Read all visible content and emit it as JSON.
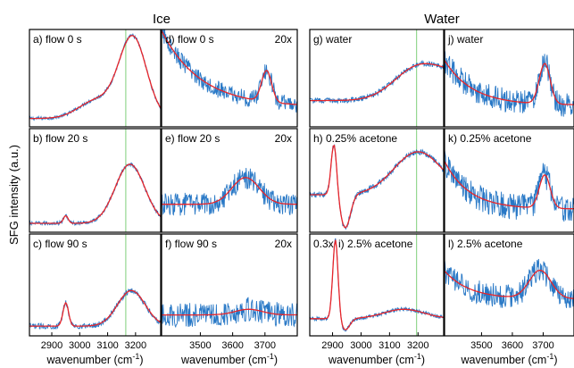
{
  "figure": {
    "ylabel": "SFG intensity (a.u.)",
    "groups": [
      {
        "title": "Ice"
      },
      {
        "title": "Water"
      }
    ],
    "xlabel_main": "wavenumber (cm",
    "xlabel_sup": "-1",
    "xlabel_close": ")"
  },
  "chart_data": [
    {
      "type": "line",
      "group": "Ice",
      "col": 0,
      "row": 0,
      "label": "a) flow 0 s",
      "multiplier": "",
      "xlim": [
        2820,
        3290
      ],
      "vline": 3165,
      "series": [
        {
          "kind": "data"
        },
        {
          "kind": "fit"
        }
      ],
      "peaks": [
        {
          "x": 3190,
          "h": 0.9,
          "w": 70
        },
        {
          "x": 3060,
          "h": 0.2,
          "w": 90
        }
      ],
      "baseline": 0.05,
      "noise": 0.02
    },
    {
      "type": "line",
      "group": "Ice",
      "col": 0,
      "row": 1,
      "label": "b) flow 20 s",
      "multiplier": "",
      "xlim": [
        2820,
        3290
      ],
      "vline": 3165,
      "peaks": [
        {
          "x": 3180,
          "h": 0.62,
          "w": 75
        },
        {
          "x": 2950,
          "h": 0.08,
          "w": 12
        }
      ],
      "baseline": 0.05,
      "noise": 0.02
    },
    {
      "type": "line",
      "group": "Ice",
      "col": 0,
      "row": 2,
      "label": "c) flow 90 s",
      "multiplier": "",
      "xlim": [
        2820,
        3290
      ],
      "vline": 3165,
      "peaks": [
        {
          "x": 3185,
          "h": 0.38,
          "w": 70
        },
        {
          "x": 2950,
          "h": 0.25,
          "w": 14
        }
      ],
      "baseline": 0.06,
      "noise": 0.03
    },
    {
      "type": "line",
      "group": "Ice",
      "col": 1,
      "row": 0,
      "label": "d) flow 0 s",
      "multiplier": "20x",
      "xlim": [
        3380,
        3800
      ],
      "vline": null,
      "peaks": [
        {
          "x": 3705,
          "h": 0.35,
          "w": 22
        }
      ],
      "decay": {
        "a": 0.85,
        "k": 120
      },
      "baseline": 0.18,
      "noise": 0.1
    },
    {
      "type": "line",
      "group": "Ice",
      "col": 1,
      "row": 1,
      "label": "e) flow 20 s",
      "multiplier": "20x",
      "xlim": [
        3380,
        3800
      ],
      "vline": null,
      "peaks": [
        {
          "x": 3640,
          "h": 0.28,
          "w": 60
        }
      ],
      "baseline": 0.25,
      "noise": 0.12
    },
    {
      "type": "line",
      "group": "Ice",
      "col": 1,
      "row": 2,
      "label": "f) flow 90 s",
      "multiplier": "20x",
      "xlim": [
        3380,
        3800
      ],
      "vline": null,
      "peaks": [
        {
          "x": 3650,
          "h": 0.06,
          "w": 60
        }
      ],
      "baseline": 0.18,
      "noise": 0.13
    },
    {
      "type": "line",
      "group": "Water",
      "col": 2,
      "row": 0,
      "label": "g) water",
      "multiplier": "",
      "xlim": [
        2820,
        3290
      ],
      "vline": 3195,
      "peaks": [
        {
          "x": 3200,
          "h": 0.35,
          "w": 120
        },
        {
          "x": 3400,
          "h": 0.3,
          "w": 150
        }
      ],
      "baseline": 0.25,
      "noise": 0.03
    },
    {
      "type": "line",
      "group": "Water",
      "col": 2,
      "row": 1,
      "label": "h) 0.25% acetone",
      "multiplier": "",
      "xlim": [
        2820,
        3290
      ],
      "vline": 3195,
      "peaks": [
        {
          "x": 2905,
          "h": 0.55,
          "w": 14
        },
        {
          "x": 3200,
          "h": 0.45,
          "w": 120
        },
        {
          "x": 2945,
          "h": -0.35,
          "w": 25
        }
      ],
      "baseline": 0.35,
      "noise": 0.03
    },
    {
      "type": "line",
      "group": "Water",
      "col": 2,
      "row": 2,
      "label": "i) 2.5% acetone",
      "multiplier": "0.3x",
      "xlim": [
        2820,
        3290
      ],
      "vline": 3195,
      "peaks": [
        {
          "x": 2910,
          "h": 0.85,
          "w": 13
        },
        {
          "x": 2945,
          "h": -0.12,
          "w": 22
        },
        {
          "x": 3150,
          "h": 0.1,
          "w": 100
        }
      ],
      "baseline": 0.14,
      "noise": 0.02
    },
    {
      "type": "line",
      "group": "Water",
      "col": 3,
      "row": 0,
      "label": "j) water",
      "multiplier": "",
      "xlim": [
        3380,
        3800
      ],
      "vline": null,
      "peaks": [
        {
          "x": 3705,
          "h": 0.45,
          "w": 25
        }
      ],
      "decay": {
        "a": 0.5,
        "k": 90
      },
      "baseline": 0.2,
      "noise": 0.14
    },
    {
      "type": "line",
      "group": "Water",
      "col": 3,
      "row": 1,
      "label": "k) 0.25% acetone",
      "multiplier": "",
      "xlim": [
        3380,
        3800
      ],
      "vline": null,
      "peaks": [
        {
          "x": 3705,
          "h": 0.35,
          "w": 25
        }
      ],
      "decay": {
        "a": 0.5,
        "k": 80
      },
      "baseline": 0.2,
      "noise": 0.14
    },
    {
      "type": "line",
      "group": "Water",
      "col": 3,
      "row": 2,
      "label": "l) 2.5% acetone",
      "multiplier": "",
      "xlim": [
        3380,
        3800
      ],
      "vline": null,
      "peaks": [
        {
          "x": 3690,
          "h": 0.3,
          "w": 50
        }
      ],
      "decay": {
        "a": 0.3,
        "k": 80
      },
      "baseline": 0.35,
      "noise": 0.13
    }
  ],
  "x_ticks": {
    "left": {
      "values": [
        2900,
        3000,
        3100,
        3200
      ],
      "labels": [
        "2900",
        "3000",
        "3100",
        "3200"
      ]
    },
    "right": {
      "values": [
        3500,
        3600,
        3700
      ],
      "labels": [
        "3500",
        "3600",
        "3700"
      ]
    }
  }
}
